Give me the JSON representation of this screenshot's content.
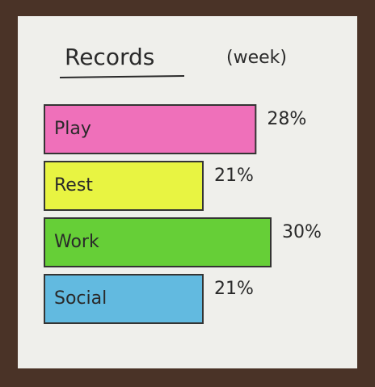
{
  "chart_data": {
    "type": "bar",
    "orientation": "horizontal",
    "title": "Records",
    "subtitle": "(week)",
    "categories": [
      "Play",
      "Rest",
      "Work",
      "Social"
    ],
    "values": [
      28,
      21,
      30,
      21
    ],
    "value_labels": [
      "28%",
      "21%",
      "30%",
      "21%"
    ],
    "colors": [
      "#f06ab8",
      "#e8f53a",
      "#5fce2e",
      "#5bb8e0"
    ]
  }
}
